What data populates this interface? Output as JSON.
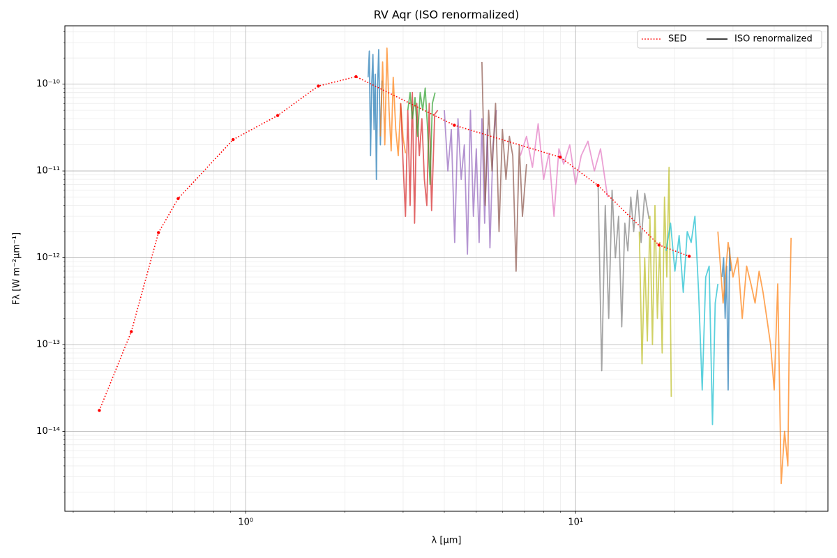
{
  "chart_data": {
    "type": "line",
    "title": "RV Aqr (ISO renormalized)",
    "xlabel": "λ [μm]",
    "ylabel": "Fλ [W m⁻²μm⁻¹]",
    "xscale": "log",
    "yscale": "log",
    "grid": true,
    "legend_loc": "upper right",
    "xlim": [
      0.283,
      58.2
    ],
    "ylim": [
      1.2e-15,
      4.7e-10
    ],
    "xticks": [
      {
        "value": 1,
        "label": "10⁰"
      },
      {
        "value": 10,
        "label": "10¹"
      }
    ],
    "yticks": [
      {
        "value": 1e-14,
        "label": "10⁻¹⁴"
      },
      {
        "value": 1e-13,
        "label": "10⁻¹³"
      },
      {
        "value": 1e-12,
        "label": "10⁻¹²"
      },
      {
        "value": 1e-11,
        "label": "10⁻¹¹"
      },
      {
        "value": 1e-10,
        "label": "10⁻¹⁰"
      }
    ],
    "xminor": [
      0.3,
      0.4,
      0.5,
      0.6,
      0.7,
      0.8,
      0.9,
      2,
      3,
      4,
      5,
      6,
      7,
      8,
      9,
      20,
      30,
      40,
      50
    ],
    "yminor": [
      2e-15,
      3e-15,
      4e-15,
      5e-15,
      6e-15,
      7e-15,
      8e-15,
      9e-15,
      2e-14,
      3e-14,
      4e-14,
      5e-14,
      6e-14,
      7e-14,
      8e-14,
      9e-14,
      2e-13,
      3e-13,
      4e-13,
      5e-13,
      6e-13,
      7e-13,
      8e-13,
      9e-13,
      2e-12,
      3e-12,
      4e-12,
      5e-12,
      6e-12,
      7e-12,
      8e-12,
      9e-12,
      2e-11,
      3e-11,
      4e-11,
      5e-11,
      6e-11,
      7e-11,
      8e-11,
      9e-11,
      2e-10,
      3e-10,
      4e-10
    ],
    "series": [
      {
        "name": "SED",
        "color": "#ff0000",
        "style": "dotted",
        "x": [
          0.36,
          0.45,
          0.544,
          0.624,
          0.916,
          1.25,
          1.66,
          2.16,
          4.29,
          8.98,
          11.7,
          17.9,
          22.1
        ],
        "values": [
          1.74e-14,
          1.41e-13,
          1.95e-12,
          4.8e-12,
          2.3e-11,
          4.35e-11,
          9.5e-11,
          1.22e-10,
          3.36e-11,
          1.44e-11,
          6.8e-12,
          1.4e-12,
          1.04e-12
        ]
      }
    ],
    "spectra_label": "ISO renormalized",
    "spectra_legend_color": "#000000",
    "spectra": [
      {
        "color": "#1f77b4",
        "x": [
          2.35,
          2.37,
          2.39,
          2.41,
          2.43,
          2.45,
          2.47,
          2.49,
          2.51,
          2.53,
          2.56,
          2.59
        ],
        "values": [
          1.2e-10,
          2.4e-10,
          1.5e-11,
          1e-10,
          2.2e-10,
          3e-11,
          1.3e-10,
          8e-12,
          9e-11,
          2.5e-10,
          2e-11,
          1.1e-10
        ]
      },
      {
        "color": "#ff7f0e",
        "x": [
          2.56,
          2.6,
          2.64,
          2.68,
          2.72,
          2.76,
          2.8,
          2.85,
          2.9,
          2.95,
          3.0,
          3.05
        ],
        "values": [
          2.5e-11,
          1.8e-10,
          2e-11,
          2.6e-10,
          5e-11,
          1.7e-11,
          1.2e-10,
          3e-11,
          1.5e-11,
          6e-11,
          2.4e-11,
          1.6e-11
        ]
      },
      {
        "color": "#d62728",
        "x": [
          2.95,
          3.0,
          3.05,
          3.1,
          3.15,
          3.2,
          3.25,
          3.3,
          3.36,
          3.42,
          3.48,
          3.54,
          3.6,
          3.66,
          3.74,
          3.82
        ],
        "values": [
          6e-11,
          1.2e-11,
          3e-12,
          5e-11,
          4e-12,
          8e-11,
          2.5e-12,
          6e-11,
          1.5e-11,
          4e-11,
          8e-12,
          4e-12,
          6e-11,
          3.5e-12,
          4.5e-11,
          5e-11
        ]
      },
      {
        "color": "#2ca02c",
        "x": [
          3.1,
          3.15,
          3.2,
          3.26,
          3.32,
          3.38,
          3.44,
          3.5,
          3.56,
          3.62,
          3.68,
          3.75
        ],
        "values": [
          5e-11,
          8e-11,
          4e-11,
          7e-11,
          2.5e-11,
          8e-11,
          5e-11,
          9e-11,
          3e-11,
          7e-12,
          6e-11,
          8e-11
        ]
      },
      {
        "color": "#9467bd",
        "x": [
          4.0,
          4.1,
          4.2,
          4.3,
          4.4,
          4.5,
          4.6,
          4.7,
          4.8,
          4.9,
          5.0,
          5.1,
          5.2,
          5.3,
          5.4,
          5.5,
          5.62,
          5.75
        ],
        "values": [
          5e-11,
          1e-11,
          3e-11,
          1.5e-12,
          4e-11,
          8e-12,
          2e-11,
          1.1e-12,
          5e-11,
          3e-12,
          1.8e-11,
          1.5e-12,
          4e-11,
          2.5e-12,
          3e-11,
          1.3e-12,
          2e-11,
          5e-11
        ]
      },
      {
        "color": "#8c564b",
        "x": [
          5.2,
          5.32,
          5.45,
          5.58,
          5.72,
          5.86,
          6.0,
          6.15,
          6.3,
          6.45,
          6.6,
          6.75,
          6.9,
          7.1
        ],
        "values": [
          1.8e-10,
          4e-12,
          5e-11,
          1e-11,
          6e-11,
          2e-12,
          3e-11,
          8e-12,
          2.5e-11,
          1.5e-11,
          7e-13,
          2e-11,
          3e-12,
          1.2e-11
        ]
      },
      {
        "color": "#e377c2",
        "x": [
          6.8,
          7.1,
          7.4,
          7.7,
          8.0,
          8.3,
          8.6,
          8.9,
          9.2,
          9.6,
          10.0,
          10.4,
          10.9,
          11.4,
          11.9,
          12.5
        ],
        "values": [
          1.5e-11,
          2.5e-11,
          1.1e-11,
          3.5e-11,
          8e-12,
          1.6e-11,
          3e-12,
          1.8e-11,
          1.2e-11,
          2e-11,
          7e-12,
          1.5e-11,
          2.2e-11,
          1e-11,
          1.8e-11,
          5e-12
        ]
      },
      {
        "color": "#7f7f7f",
        "x": [
          11.7,
          12.0,
          12.3,
          12.6,
          12.9,
          13.2,
          13.5,
          13.8,
          14.1,
          14.4,
          14.7,
          15.0,
          15.4,
          15.8,
          16.2,
          16.7
        ],
        "values": [
          7e-12,
          5e-14,
          4e-12,
          2e-13,
          6e-12,
          1e-12,
          3e-12,
          1.6e-13,
          2.5e-12,
          1.2e-12,
          5e-12,
          2e-12,
          6e-12,
          1.5e-12,
          5.5e-12,
          2.8e-12
        ]
      },
      {
        "color": "#bcbd22",
        "x": [
          15.6,
          15.9,
          16.2,
          16.5,
          16.8,
          17.1,
          17.4,
          17.7,
          18.0,
          18.3,
          18.6,
          18.9,
          19.2,
          19.5
        ],
        "values": [
          2e-12,
          6e-14,
          1e-12,
          1.1e-13,
          3e-12,
          1e-13,
          4e-12,
          2e-13,
          1.5e-12,
          8e-14,
          5e-12,
          6e-13,
          1.1e-11,
          2.5e-14
        ]
      },
      {
        "color": "#17becf",
        "x": [
          18.8,
          19.4,
          20.0,
          20.6,
          21.2,
          21.8,
          22.4,
          23.0,
          23.6,
          24.2,
          24.8,
          25.4,
          26.0,
          26.5,
          27.0
        ],
        "values": [
          1.2e-12,
          2.5e-12,
          7e-13,
          1.8e-12,
          4e-13,
          2e-12,
          1.5e-12,
          3e-12,
          4e-13,
          3e-14,
          6e-13,
          8e-13,
          1.2e-14,
          3e-13,
          5e-13
        ]
      },
      {
        "color": "#1f77b4",
        "x": [
          27.8,
          28.1,
          28.4,
          28.7,
          29.0,
          29.3,
          29.5
        ],
        "values": [
          6e-13,
          1e-12,
          2e-13,
          8e-13,
          3e-14,
          1.3e-12,
          7e-13
        ]
      },
      {
        "color": "#ff7f0e",
        "x": [
          27.0,
          28.0,
          29.0,
          30.0,
          31.0,
          32.0,
          33.0,
          34.0,
          35.0,
          36.0,
          37.0,
          38.0,
          39.0,
          40.0,
          41.0,
          42.0,
          43.0,
          44.0,
          44.5,
          45.0
        ],
        "values": [
          2e-12,
          3e-13,
          1.5e-12,
          6e-13,
          1e-12,
          2e-13,
          8e-13,
          5e-13,
          3e-13,
          7e-13,
          4e-13,
          2e-13,
          1e-13,
          3e-14,
          5e-13,
          2.5e-15,
          1e-14,
          4e-15,
          2e-13,
          1.7e-12
        ]
      }
    ]
  }
}
